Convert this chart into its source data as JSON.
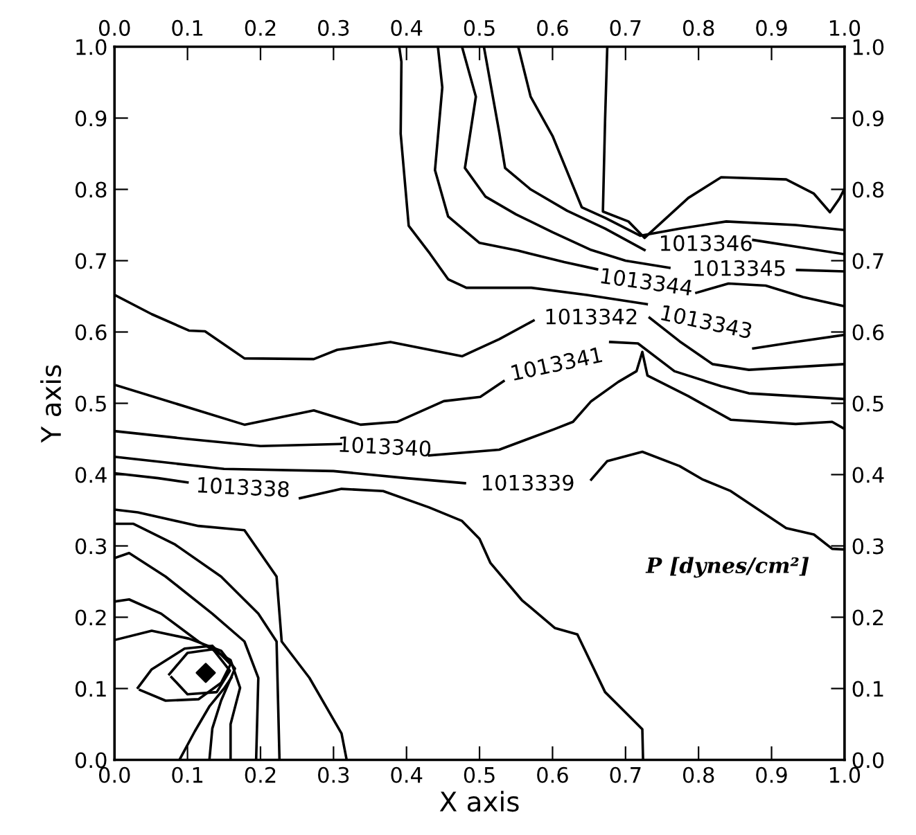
{
  "chart_data": {
    "type": "line",
    "xlabel": "X axis",
    "ylabel": "Y axis",
    "xlim": [
      0.0,
      1.0
    ],
    "ylim": [
      0.0,
      1.0
    ],
    "x2lim": [
      0.0,
      1.0
    ],
    "y2lim": [
      0.0,
      1.0
    ],
    "xticks": [
      {
        "value": 0,
        "label": "0.0"
      },
      0.1,
      0.2,
      0.3,
      0.4,
      0.5,
      0.6,
      0.7,
      0.8,
      0.9,
      {
        "value": 1,
        "label": "1.0"
      }
    ],
    "yticks": [
      {
        "value": 0,
        "label": "0.0"
      },
      0.1,
      0.2,
      0.3,
      0.4,
      0.5,
      0.6,
      0.7,
      0.8,
      0.9,
      {
        "value": 1,
        "label": "1.0"
      }
    ],
    "x2ticks": [
      {
        "value": 0,
        "label": "0.0"
      },
      0.1,
      0.2,
      0.3,
      0.4,
      0.5,
      0.6,
      0.7,
      0.8,
      0.9,
      {
        "value": 1,
        "label": "1.0"
      }
    ],
    "y2ticks": [
      {
        "value": 0,
        "label": "0.0"
      },
      0.1,
      0.2,
      0.3,
      0.4,
      0.5,
      0.6,
      0.7,
      0.8,
      0.9,
      {
        "value": 1,
        "label": "1.0"
      }
    ],
    "grid": false,
    "legend": false,
    "marker": "none",
    "line_style": "solid",
    "series": [
      {
        "color": "#000000",
        "x": [
          0.39,
          0.393,
          0.392,
          0.403,
          0.432,
          0.457,
          0.482,
          0.571,
          0.647,
          0.729,
          null,
          0.875,
          0.932,
          1.0
        ],
        "values": [
          1.0,
          0.979,
          0.878,
          0.749,
          0.71,
          0.674,
          0.662,
          0.662,
          0.652,
          0.639,
          null,
          0.577,
          0.586,
          0.596
        ]
      },
      {
        "color": "#000000",
        "x": [
          0.443,
          0.449,
          0.439,
          0.457,
          0.5,
          0.553,
          0.616,
          0.661,
          null,
          0.797,
          0.841,
          0.892,
          0.943,
          1.0
        ],
        "values": [
          1.0,
          0.943,
          0.827,
          0.762,
          0.725,
          0.714,
          0.698,
          0.688,
          null,
          0.655,
          0.668,
          0.665,
          0.649,
          0.636
        ]
      },
      {
        "color": "#000000",
        "x": [
          0.476,
          0.495,
          0.48,
          0.508,
          0.55,
          0.6,
          0.653,
          0.7,
          0.76,
          null,
          0.935,
          1.0
        ],
        "values": [
          1.0,
          0.93,
          0.83,
          0.79,
          0.765,
          0.74,
          0.715,
          0.7,
          0.69,
          null,
          0.687,
          0.685
        ]
      },
      {
        "color": "#000000",
        "x": [
          0.506,
          0.527,
          0.535,
          0.57,
          0.62,
          0.672,
          0.726,
          null,
          0.875,
          0.932,
          1.0
        ],
        "values": [
          1.0,
          0.88,
          0.83,
          0.8,
          0.77,
          0.745,
          0.715,
          null,
          0.729,
          0.72,
          0.709
        ]
      },
      {
        "color": "#000000",
        "x": [
          0.553,
          0.57,
          0.6,
          0.63,
          0.64,
          0.672,
          0.72,
          0.774,
          0.838,
          0.933,
          1.0
        ],
        "values": [
          1.0,
          0.93,
          0.875,
          0.8,
          0.775,
          0.76,
          0.735,
          0.745,
          0.755,
          0.75,
          0.743
        ]
      },
      {
        "color": "#000000",
        "x": [
          0.675,
          0.672,
          0.669,
          0.704,
          0.726,
          0.786,
          0.831,
          0.92,
          0.958,
          0.98,
          0.993,
          1.0
        ],
        "values": [
          1.0,
          0.898,
          0.769,
          0.755,
          0.732,
          0.788,
          0.817,
          0.814,
          0.794,
          0.768,
          0.787,
          0.801
        ]
      },
      {
        "color": "#000000",
        "x": [
          0.0,
          0.051,
          0.102,
          0.124,
          0.178,
          0.273,
          0.305,
          0.378,
          0.476,
          0.527,
          0.574,
          null,
          0.733,
          0.774,
          0.819,
          0.869,
          1.0
        ],
        "values": [
          0.652,
          0.625,
          0.602,
          0.601,
          0.563,
          0.562,
          0.575,
          0.586,
          0.566,
          0.59,
          0.616,
          null,
          0.62,
          0.587,
          0.555,
          0.547,
          0.555
        ]
      },
      {
        "color": "#000000",
        "x": [
          0.0,
          0.178,
          0.273,
          0.337,
          0.387,
          0.451,
          0.501,
          0.533,
          null,
          0.679,
          0.717,
          0.767,
          0.831,
          0.869,
          1.0
        ],
        "values": [
          0.526,
          0.47,
          0.49,
          0.47,
          0.474,
          0.503,
          0.509,
          0.531,
          null,
          0.586,
          0.584,
          0.545,
          0.524,
          0.514,
          0.506
        ]
      },
      {
        "color": "#000000",
        "x": [
          0.0,
          0.1,
          0.2,
          0.31,
          null,
          0.431,
          0.527,
          0.603,
          0.628,
          0.653,
          0.69,
          0.715,
          0.723,
          0.73,
          0.786,
          0.844,
          0.933,
          0.983,
          1.0
        ],
        "values": [
          0.461,
          0.45,
          0.44,
          0.443,
          null,
          0.427,
          0.435,
          0.464,
          0.474,
          0.503,
          0.53,
          0.545,
          0.572,
          0.539,
          0.51,
          0.477,
          0.471,
          0.474,
          0.464
        ]
      },
      {
        "color": "#000000",
        "x": [
          0.0,
          0.15,
          0.3,
          0.4,
          0.48,
          null,
          0.653,
          0.675,
          0.723,
          0.774,
          0.806,
          0.844,
          0.92,
          0.958,
          0.983,
          1.0
        ],
        "values": [
          0.425,
          0.408,
          0.405,
          0.395,
          0.388,
          null,
          0.393,
          0.419,
          0.432,
          0.412,
          0.393,
          0.377,
          0.325,
          0.316,
          0.296,
          0.295
        ]
      },
      {
        "color": "#000000",
        "x": [
          0.0,
          0.06,
          0.1,
          null,
          0.254,
          0.311,
          0.368,
          0.431,
          0.476,
          0.5,
          0.515,
          0.558,
          0.603,
          0.634,
          0.672,
          0.723,
          0.724
        ],
        "values": [
          0.402,
          0.395,
          0.389,
          null,
          0.367,
          0.38,
          0.377,
          0.354,
          0.335,
          0.31,
          0.276,
          0.224,
          0.185,
          0.176,
          0.095,
          0.043,
          0.0
        ]
      },
      {
        "color": "#000000",
        "x": [
          0.0,
          0.032,
          0.115,
          0.178,
          0.222,
          0.229,
          0.267,
          0.311,
          0.318
        ],
        "values": [
          0.351,
          0.347,
          0.328,
          0.322,
          0.257,
          0.166,
          0.115,
          0.037,
          0.0
        ]
      },
      {
        "color": "#000000",
        "x": [
          0.0,
          0.026,
          0.083,
          0.146,
          0.197,
          0.222,
          0.226
        ],
        "values": [
          0.331,
          0.331,
          0.302,
          0.257,
          0.205,
          0.166,
          0.0
        ]
      },
      {
        "color": "#000000",
        "x": [
          0.0,
          0.02,
          0.07,
          0.134,
          0.178,
          0.197,
          0.194
        ],
        "values": [
          0.283,
          0.29,
          0.257,
          0.205,
          0.166,
          0.115,
          0.0
        ]
      },
      {
        "color": "#000000",
        "x": [
          0.0,
          0.02,
          0.064,
          0.115,
          0.159,
          0.172,
          0.159,
          0.159
        ],
        "values": [
          0.222,
          0.225,
          0.205,
          0.166,
          0.14,
          0.101,
          0.05,
          0.0
        ]
      },
      {
        "color": "#000000",
        "x": [
          0.0,
          0.051,
          0.102,
          0.146,
          0.165,
          0.146,
          0.134,
          0.13
        ],
        "values": [
          0.168,
          0.181,
          0.17,
          0.153,
          0.128,
          0.083,
          0.044,
          0.0
        ]
      },
      {
        "color": "#000000",
        "x": [
          0.089,
          0.11,
          0.13,
          0.15,
          0.16
        ],
        "values": [
          0.0,
          0.04,
          0.075,
          0.1,
          0.115
        ]
      },
      {
        "color": "#000000",
        "x": [
          0.032,
          0.051,
          0.096,
          0.134,
          0.159,
          0.146,
          0.115,
          0.07,
          0.035
        ],
        "values": [
          0.101,
          0.127,
          0.156,
          0.16,
          0.134,
          0.108,
          0.085,
          0.083,
          0.098
        ]
      },
      {
        "color": "#000000",
        "x": [
          0.075,
          0.1,
          0.135,
          0.158,
          0.14,
          0.1,
          0.078
        ],
        "values": [
          0.12,
          0.15,
          0.155,
          0.125,
          0.095,
          0.092,
          0.116
        ]
      },
      {
        "type": "scatter",
        "marker": "diamond",
        "color": "#000000",
        "x": [
          0.125
        ],
        "values": [
          0.122
        ]
      }
    ],
    "annotations": [
      "1013346",
      "1013345",
      "1013344",
      "1013343",
      "1013342",
      "1013341",
      "1013340",
      "1013339",
      "1013338",
      "P [dynes/cm²]"
    ]
  }
}
